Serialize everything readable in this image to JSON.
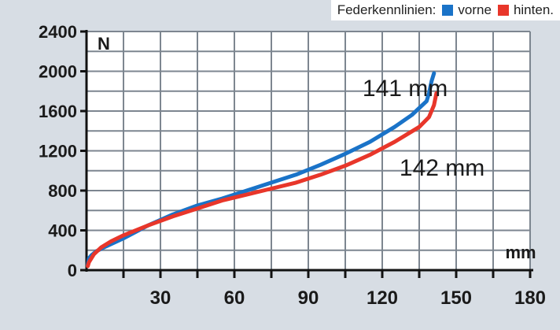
{
  "legend": {
    "title": "Federkennlinien:",
    "items": [
      {
        "label": "vorne",
        "color": "#1a73c8"
      },
      {
        "label": "hinten.",
        "color": "#e8362a"
      }
    ]
  },
  "chart_data": {
    "type": "line",
    "title": "",
    "xlabel": "mm",
    "ylabel": "N",
    "xlim": [
      0,
      180
    ],
    "ylim": [
      0,
      2400
    ],
    "x_ticks": [
      30,
      60,
      90,
      120,
      150,
      180
    ],
    "x_tick_labels": [
      "30",
      "60",
      "90",
      "120",
      "150",
      "180"
    ],
    "y_ticks": [
      0,
      400,
      800,
      1200,
      1600,
      2000,
      2400
    ],
    "y_tick_labels": [
      "0",
      "400",
      "800",
      "1200",
      "1600",
      "2000",
      "2400"
    ],
    "grid": true,
    "legend_position": "top-right",
    "series": [
      {
        "name": "vorne",
        "color": "#1a73c8",
        "x": [
          0.5,
          1,
          2,
          4,
          8,
          15,
          25,
          35,
          45,
          55,
          65,
          75,
          85,
          95,
          105,
          115,
          125,
          132,
          138,
          139,
          140,
          141
        ],
        "y": [
          50,
          120,
          150,
          190,
          240,
          320,
          450,
          560,
          650,
          720,
          800,
          880,
          960,
          1060,
          1170,
          1290,
          1440,
          1560,
          1700,
          1780,
          1900,
          1980
        ]
      },
      {
        "name": "hinten.",
        "color": "#e8362a",
        "x": [
          0.5,
          1,
          3,
          6,
          10,
          15,
          25,
          35,
          45,
          55,
          65,
          75,
          85,
          95,
          105,
          115,
          125,
          135,
          139,
          141,
          142
        ],
        "y": [
          40,
          80,
          160,
          230,
          290,
          350,
          450,
          540,
          620,
          700,
          760,
          820,
          880,
          960,
          1050,
          1160,
          1290,
          1440,
          1540,
          1660,
          1780
        ]
      }
    ],
    "annotations": [
      {
        "text": "141 mm",
        "x": 112,
        "y": 1750
      },
      {
        "text": "142 mm",
        "x": 127,
        "y": 950
      }
    ]
  }
}
